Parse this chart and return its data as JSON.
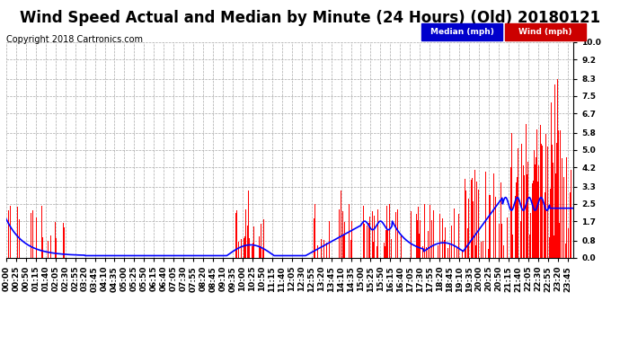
{
  "title": "Wind Speed Actual and Median by Minute (24 Hours) (Old) 20180121",
  "copyright": "Copyright 2018 Cartronics.com",
  "yticks": [
    0.0,
    0.8,
    1.7,
    2.5,
    3.3,
    4.2,
    5.0,
    5.8,
    6.7,
    7.5,
    8.3,
    9.2,
    10.0
  ],
  "ylim": [
    0.0,
    10.0
  ],
  "legend_labels": [
    "Median (mph)",
    "Wind (mph)"
  ],
  "legend_colors": [
    "#0000cc",
    "#cc0000"
  ],
  "legend_bg_colors": [
    "#0000cc",
    "#cc0000"
  ],
  "bg_color": "#ffffff",
  "plot_bg_color": "#ffffff",
  "grid_color": "#aaaaaa",
  "title_fontsize": 12,
  "copyright_fontsize": 7,
  "tick_fontsize": 6.5,
  "total_minutes": 1440,
  "wind_spike_seed": 42,
  "xtick_step": 25
}
